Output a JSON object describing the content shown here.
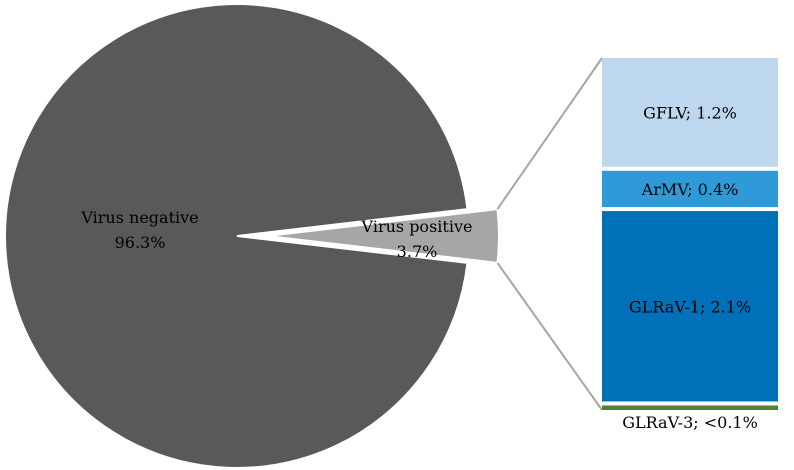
{
  "chart_data": {
    "type": "pie",
    "subtype": "bar-of-pie",
    "pie": {
      "slices": [
        {
          "line1": "Virus negative",
          "line2": "96.3%",
          "value": 96.3,
          "color": "#595959"
        },
        {
          "line1": "Virus positive",
          "line2": "3.7%",
          "value": 3.7,
          "color": "#a6a6a6",
          "exploded": true
        }
      ]
    },
    "breakdown": {
      "of": "Virus positive",
      "segments": [
        {
          "label": "GFLV; 1.2%",
          "value": 1.2,
          "color": "#bdd7ee"
        },
        {
          "label": "ArMV; 0.4%",
          "value": 0.4,
          "color": "#2e9bd8"
        },
        {
          "label": "GLRaV-1; 2.1%",
          "value": 2.1,
          "color": "#0070b8"
        },
        {
          "label": "GLRaV-3; <0.1%",
          "value": 0.05,
          "color": "#548235"
        }
      ]
    }
  }
}
